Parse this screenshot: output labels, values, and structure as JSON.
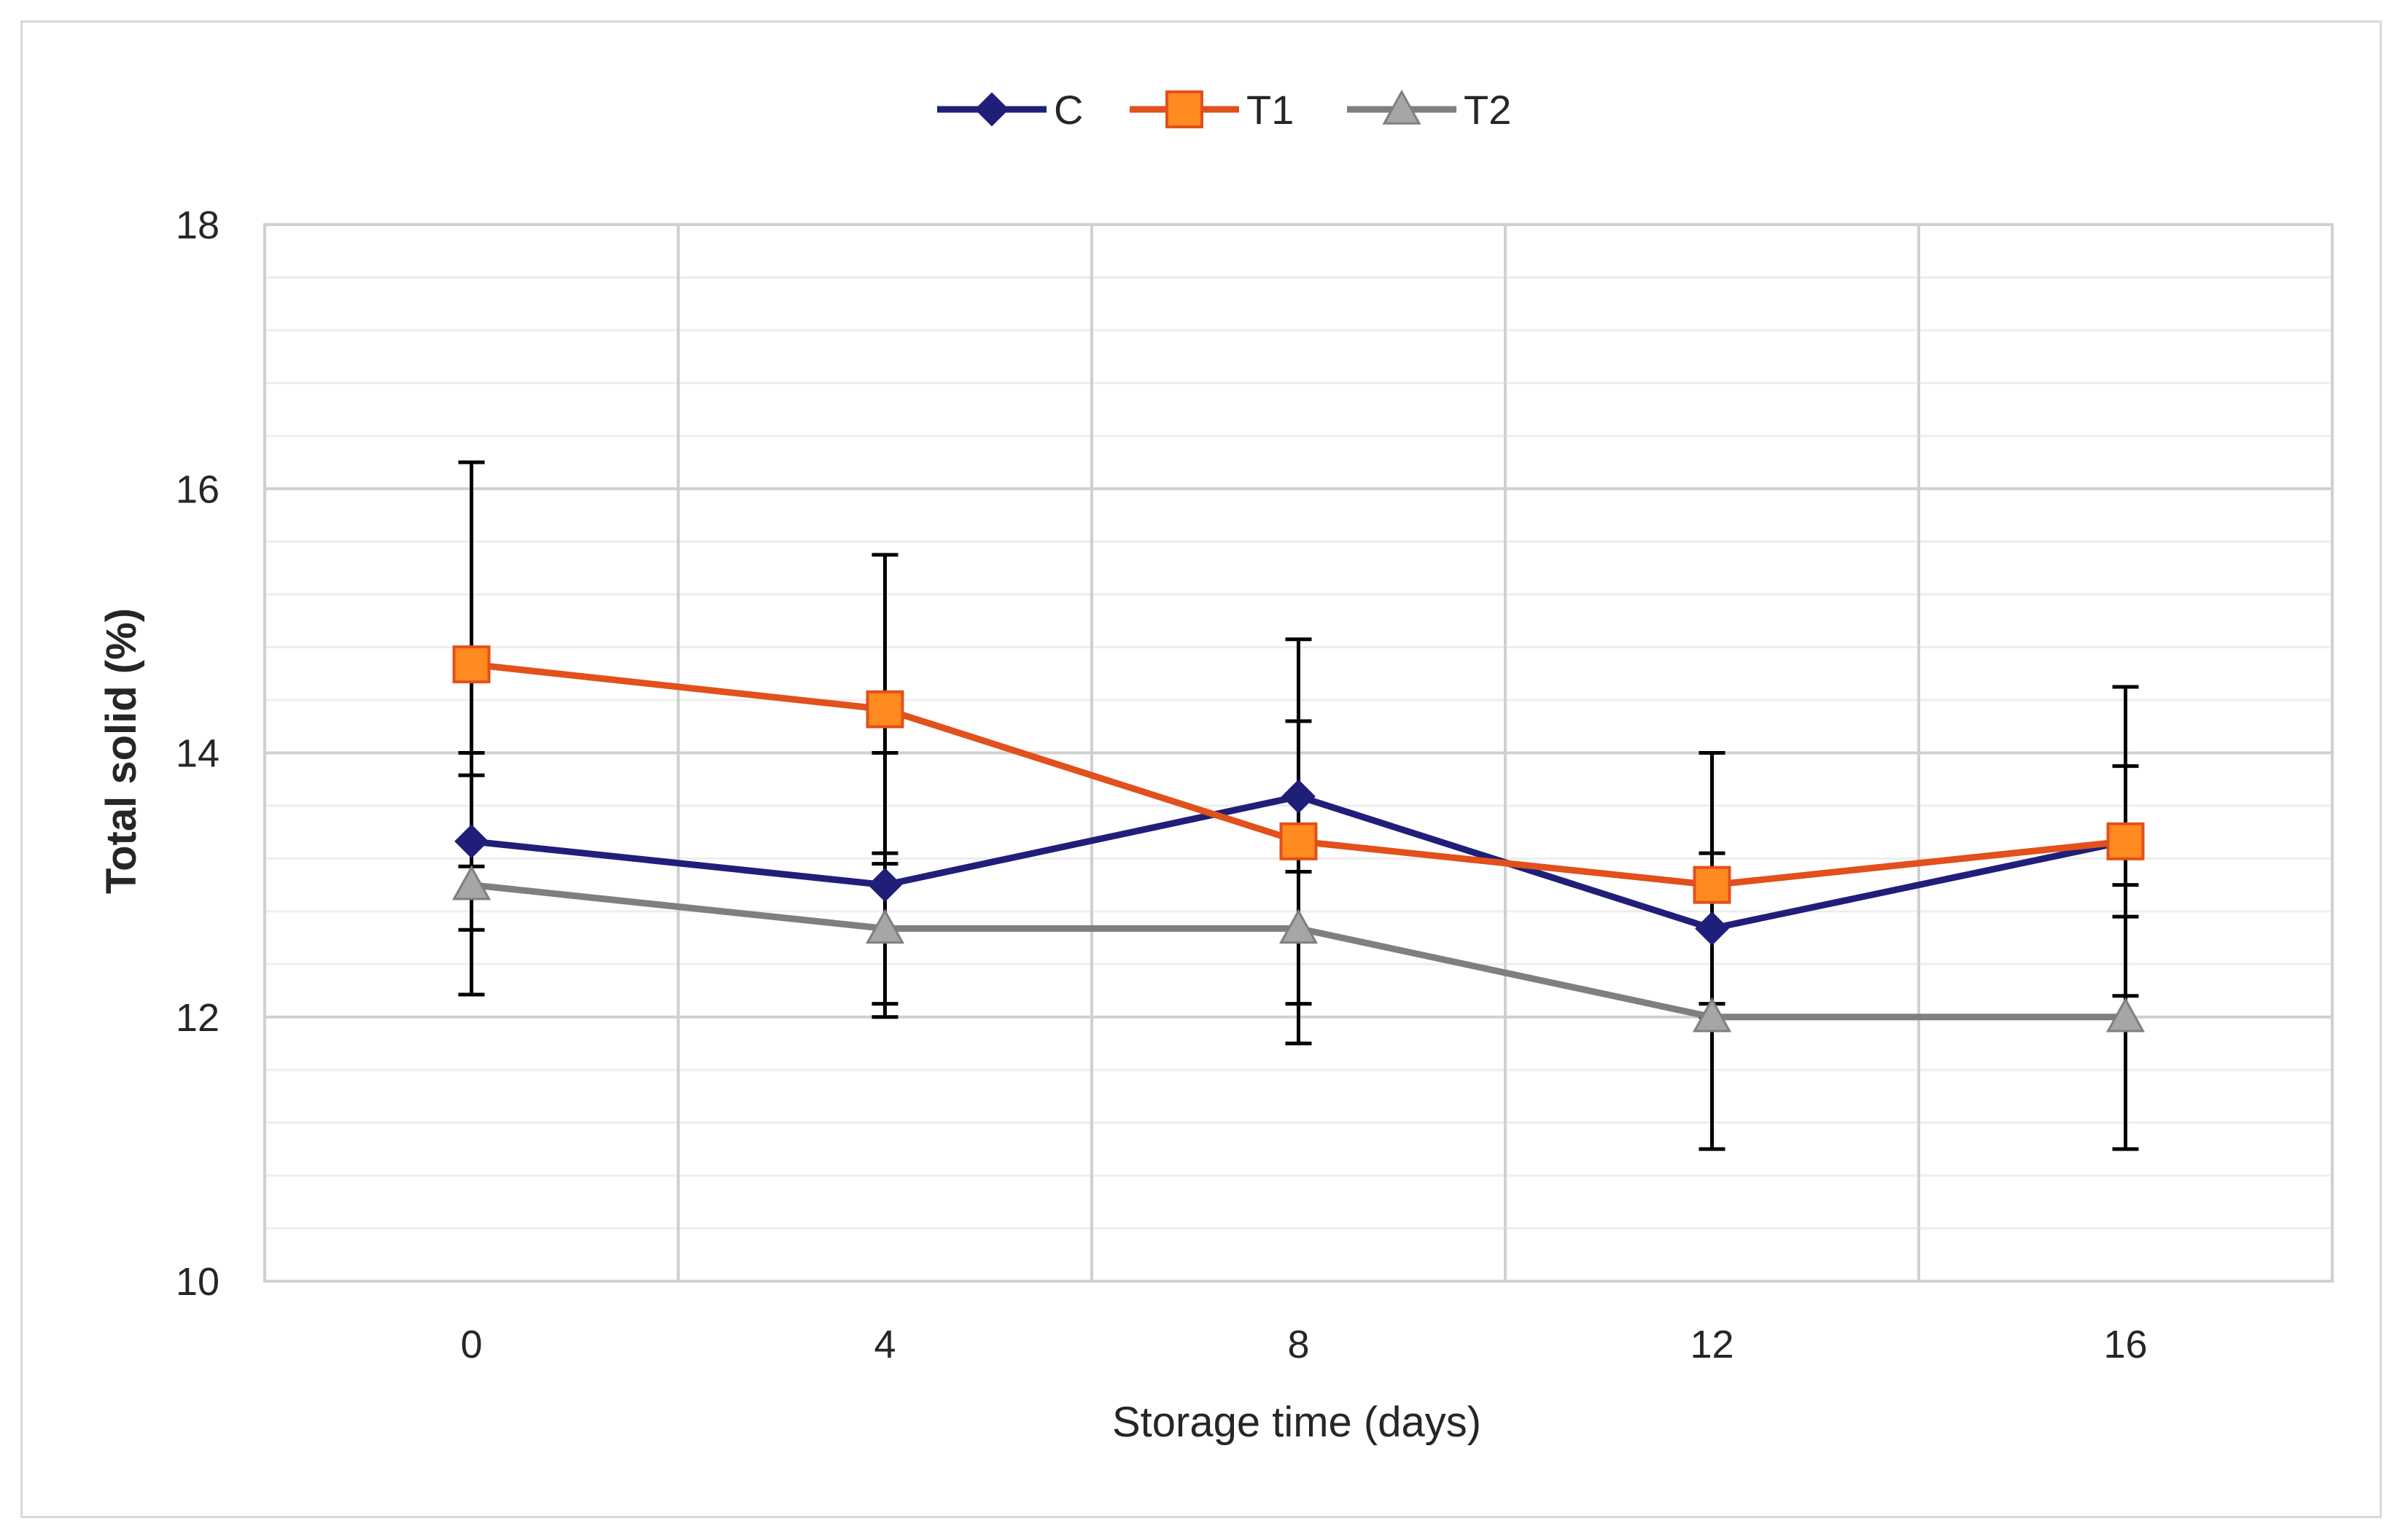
{
  "chart_data": {
    "type": "line",
    "title": "",
    "xlabel": "Storage time (days)",
    "ylabel": "Total solid (%)",
    "x": [
      0,
      4,
      8,
      12,
      16
    ],
    "x_tick_labels": [
      "0",
      "4",
      "8",
      "12",
      "16"
    ],
    "xlim": [
      -2,
      18
    ],
    "ylim": [
      10,
      18
    ],
    "y_ticks": [
      10,
      12,
      14,
      16,
      18
    ],
    "y_tick_labels": [
      "10",
      "12",
      "14",
      "16",
      "18"
    ],
    "grid": true,
    "legend_position": "top-center",
    "series": [
      {
        "name": "C",
        "color": "#1f1f7a",
        "marker": "diamond",
        "values": [
          13.33,
          13.0,
          13.67,
          12.67,
          13.33
        ],
        "errors": [
          0.67,
          1.0,
          0.57,
          0.57,
          0.57
        ]
      },
      {
        "name": "T1",
        "color": "#e2501b",
        "marker": "square",
        "values": [
          14.67,
          14.33,
          13.33,
          13.0,
          13.33
        ],
        "errors": [
          1.53,
          1.17,
          1.53,
          1.0,
          1.17
        ]
      },
      {
        "name": "T2",
        "color": "#7f7f7f",
        "marker": "triangle",
        "values": [
          13.0,
          12.67,
          12.67,
          12.0,
          12.0
        ],
        "errors": [
          0.83,
          0.57,
          0.57,
          1.0,
          1.0
        ]
      }
    ]
  }
}
